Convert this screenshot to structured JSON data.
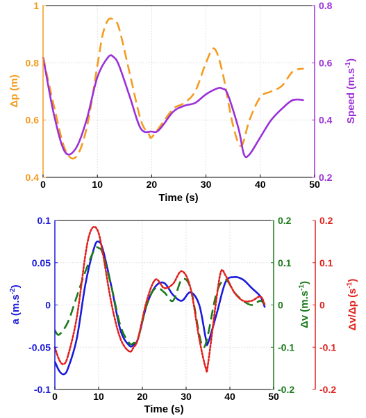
{
  "chart_data": [
    {
      "type": "line",
      "xlabel": "Time (s)",
      "ylabel_left": "Δp (m)",
      "ylabel_right_base": "Speed (m.s",
      "ylabel_right_sup": "-1",
      "ylabel_right_end": ")",
      "xlim": [
        0,
        50
      ],
      "ylim_left": [
        0.4,
        1.0
      ],
      "ylim_right": [
        0.2,
        0.8
      ],
      "grid": true,
      "x_ticks": [
        0,
        10,
        20,
        30,
        40,
        50
      ],
      "x_tick_labels": [
        "0",
        "10",
        "20",
        "30",
        "40",
        "50"
      ],
      "y_left_ticks": [
        0.4,
        0.6,
        0.8,
        1.0
      ],
      "y_left_tick_labels": [
        "0.4",
        "0.6",
        "0.8",
        "1"
      ],
      "y_right_ticks": [
        0.2,
        0.4,
        0.6,
        0.8
      ],
      "y_right_tick_labels": [
        "0.2",
        "0.4",
        "0.6",
        "0.8"
      ],
      "colors": {
        "left": "#f39c1f",
        "right": "#9b30d9"
      },
      "series": [
        {
          "axis": "left",
          "style": "dashed",
          "color": "#f39c1f",
          "x": [
            0,
            2,
            4,
            6,
            8,
            10,
            11,
            12,
            13,
            14,
            16,
            18,
            19.5,
            20,
            22,
            24,
            26,
            28,
            30,
            31.5,
            33,
            35,
            36.5,
            38,
            40,
            42,
            44,
            46,
            48
          ],
          "y": [
            0.82,
            0.65,
            0.5,
            0.47,
            0.57,
            0.79,
            0.9,
            0.95,
            0.95,
            0.92,
            0.76,
            0.6,
            0.55,
            0.54,
            0.59,
            0.64,
            0.66,
            0.7,
            0.8,
            0.85,
            0.77,
            0.58,
            0.51,
            0.6,
            0.68,
            0.7,
            0.72,
            0.77,
            0.78
          ]
        },
        {
          "axis": "right",
          "style": "solid",
          "color": "#9b30d9",
          "x": [
            0,
            2,
            4,
            6,
            8,
            10,
            12,
            13,
            14,
            16,
            18,
            20,
            21,
            22,
            24,
            26,
            28,
            30,
            32,
            33,
            34,
            36,
            37,
            38,
            40,
            42,
            44,
            46,
            48
          ],
          "y": [
            0.62,
            0.42,
            0.29,
            0.3,
            0.4,
            0.55,
            0.62,
            0.62,
            0.59,
            0.48,
            0.37,
            0.36,
            0.36,
            0.38,
            0.43,
            0.45,
            0.46,
            0.49,
            0.51,
            0.51,
            0.49,
            0.37,
            0.28,
            0.28,
            0.34,
            0.4,
            0.44,
            0.47,
            0.47
          ]
        }
      ]
    },
    {
      "type": "line",
      "xlabel": "Time (s)",
      "ylabel_left_base": "a (m.s",
      "ylabel_left_sup": "-2",
      "ylabel_left_end": ")",
      "ylabel_mid_base": "Δv (m.s",
      "ylabel_mid_sup": "-1",
      "ylabel_mid_end": ")",
      "ylabel_right_base": "Δv/Δp (s",
      "ylabel_right_sup": "-1",
      "ylabel_right_end": ")",
      "xlim": [
        0,
        50
      ],
      "ylim_left": [
        -0.1,
        0.1
      ],
      "ylim_mid": [
        -0.2,
        0.2
      ],
      "ylim_right": [
        -0.2,
        0.2
      ],
      "grid": true,
      "x_ticks": [
        0,
        10,
        20,
        30,
        40,
        50
      ],
      "x_tick_labels": [
        "0",
        "10",
        "20",
        "30",
        "40",
        "50"
      ],
      "y_left_ticks": [
        -0.1,
        -0.05,
        0,
        0.05,
        0.1
      ],
      "y_left_tick_labels": [
        "-0.1",
        "-0.05",
        "0",
        "0.05",
        "0.1"
      ],
      "y_mid_ticks": [
        -0.2,
        -0.1,
        0,
        0.1,
        0.2
      ],
      "y_mid_tick_labels": [
        "-0.2",
        "-0.1",
        "0",
        "0.1",
        "0.2"
      ],
      "y_right_ticks": [
        -0.2,
        -0.1,
        0,
        0.1,
        0.2
      ],
      "y_right_tick_labels": [
        "-0.2",
        "-0.1",
        "0",
        "0.1",
        "0.2"
      ],
      "colors": {
        "left": "#1a1adb",
        "mid": "#1a7a1a",
        "right": "#e0201c"
      },
      "series": [
        {
          "axis": "left",
          "style": "solid",
          "color": "#1a1adb",
          "x": [
            0,
            1,
            2,
            3,
            5,
            7,
            9,
            10,
            11,
            13,
            15,
            17,
            18,
            19,
            21,
            23,
            25,
            27,
            29,
            31,
            33,
            34.5,
            35,
            37,
            39,
            41,
            43,
            45,
            47,
            48
          ],
          "y": [
            -0.067,
            -0.078,
            -0.082,
            -0.075,
            -0.04,
            0.025,
            0.068,
            0.075,
            0.065,
            0.02,
            -0.03,
            -0.048,
            -0.047,
            -0.04,
            0.0,
            0.022,
            0.026,
            0.012,
            0.005,
            0.015,
            0.0,
            -0.04,
            -0.045,
            -0.01,
            0.027,
            0.033,
            0.03,
            0.02,
            0.01,
            -0.003
          ]
        },
        {
          "axis": "mid",
          "style": "dashed",
          "color": "#1a7a1a",
          "x": [
            0,
            1,
            3,
            5,
            7,
            9,
            10,
            11,
            13,
            15,
            17,
            18,
            19,
            21,
            23,
            25,
            27,
            29,
            31,
            33,
            34,
            35,
            37,
            39,
            41,
            43,
            45,
            47,
            48
          ],
          "y": [
            -0.06,
            -0.07,
            -0.04,
            0.02,
            0.08,
            0.13,
            0.135,
            0.12,
            0.04,
            -0.05,
            -0.09,
            -0.09,
            -0.08,
            0.0,
            0.04,
            0.03,
            0.01,
            0.06,
            0.04,
            -0.07,
            -0.1,
            -0.07,
            0.03,
            0.06,
            0.03,
            0.01,
            0.0,
            0.01,
            0.0
          ]
        },
        {
          "axis": "right",
          "style": "dotted",
          "color": "#e0201c",
          "x": [
            0,
            1,
            2,
            3,
            5,
            7,
            8,
            9,
            10,
            11,
            13,
            15,
            17,
            18,
            19,
            21,
            23,
            25,
            27,
            29,
            31,
            33,
            34.5,
            35,
            37,
            38,
            39,
            41,
            43,
            45,
            47,
            48
          ],
          "y": [
            -0.1,
            -0.13,
            -0.14,
            -0.12,
            -0.03,
            0.12,
            0.17,
            0.185,
            0.17,
            0.12,
            0.0,
            -0.08,
            -0.11,
            -0.1,
            -0.08,
            0.01,
            0.06,
            0.04,
            0.05,
            0.08,
            0.04,
            -0.08,
            -0.15,
            -0.14,
            0.02,
            0.08,
            0.07,
            0.03,
            0.01,
            0.01,
            0.02,
            0.0
          ]
        }
      ]
    }
  ]
}
